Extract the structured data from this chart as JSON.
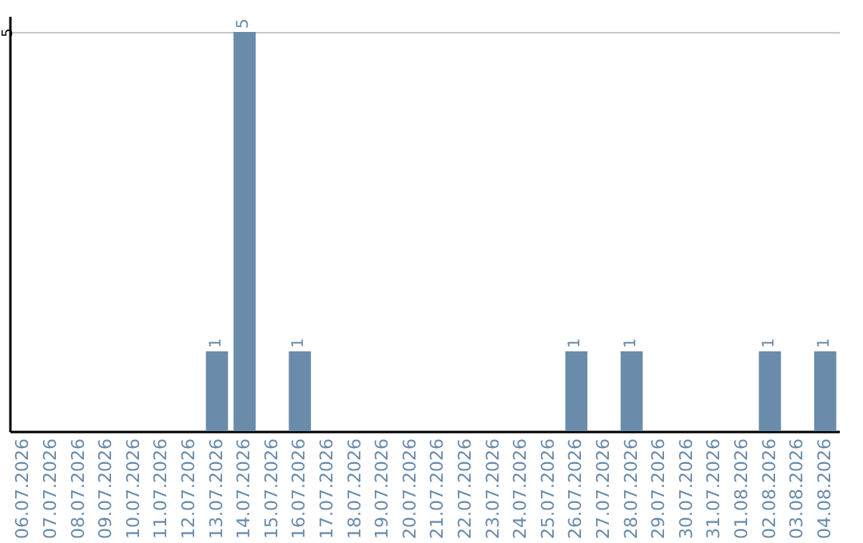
{
  "chart_data": {
    "type": "bar",
    "categories": [
      "06.07.2026",
      "07.07.2026",
      "08.07.2026",
      "09.07.2026",
      "10.07.2026",
      "11.07.2026",
      "12.07.2026",
      "13.07.2026",
      "14.07.2026",
      "15.07.2026",
      "16.07.2026",
      "17.07.2026",
      "18.07.2026",
      "19.07.2026",
      "20.07.2026",
      "21.07.2026",
      "22.07.2026",
      "23.07.2026",
      "24.07.2026",
      "25.07.2026",
      "26.07.2026",
      "27.07.2026",
      "28.07.2026",
      "29.07.2026",
      "30.07.2026",
      "31.07.2026",
      "01.08.2026",
      "02.08.2026",
      "03.08.2026",
      "04.08.2026"
    ],
    "values": [
      null,
      null,
      null,
      null,
      null,
      null,
      null,
      1,
      5,
      null,
      1,
      null,
      null,
      null,
      null,
      null,
      null,
      null,
      null,
      null,
      1,
      null,
      1,
      null,
      null,
      null,
      null,
      1,
      null,
      1
    ],
    "color": "#6a8baa",
    "ylim": [
      0,
      5.2
    ],
    "yticks": [
      5
    ],
    "grid": "y",
    "data_labels": true
  }
}
